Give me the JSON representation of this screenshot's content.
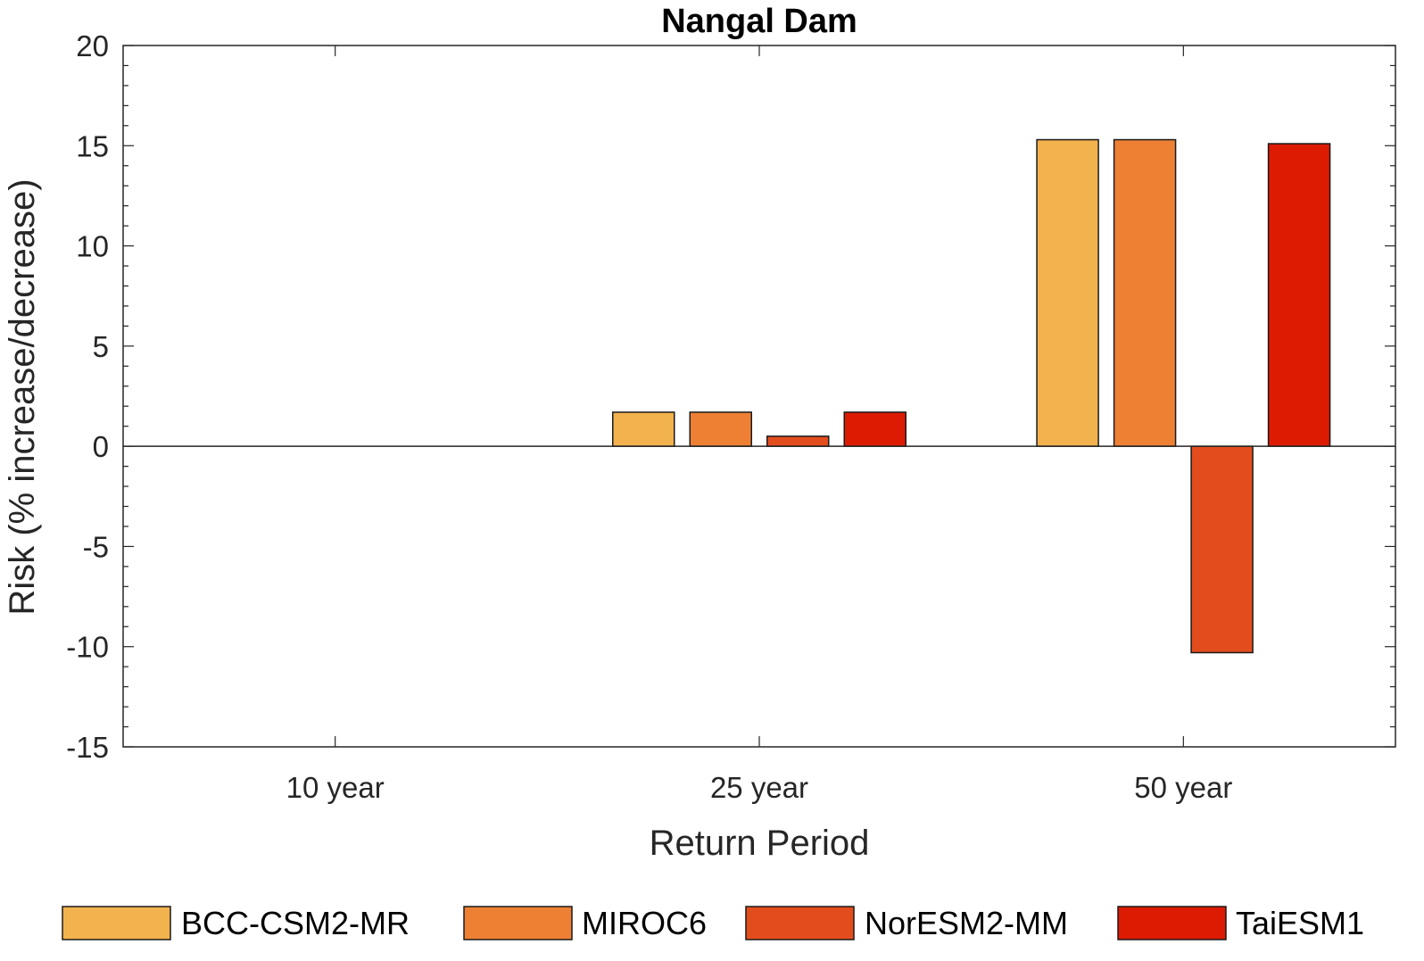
{
  "chart_data": {
    "type": "bar",
    "title": "Nangal Dam",
    "xlabel": "Return Period",
    "ylabel": "Risk (% increase/decrease)",
    "categories": [
      "10 year",
      "25 year",
      "50 year"
    ],
    "ylim": [
      -15,
      20
    ],
    "yticks": [
      -15,
      -10,
      -5,
      0,
      5,
      10,
      15,
      20
    ],
    "ytick_labels": [
      "-15",
      "-10",
      "-5",
      "0",
      "5",
      "10",
      "15",
      "20"
    ],
    "grid": false,
    "legend_position": "bottom",
    "series": [
      {
        "name": "BCC-CSM2-MR",
        "color": "#F2B24E",
        "values": [
          0,
          1.7,
          15.3
        ]
      },
      {
        "name": "MIROC6",
        "color": "#EE8034",
        "values": [
          0,
          1.7,
          15.3
        ]
      },
      {
        "name": "NorESM2-MM",
        "color": "#E34D1E",
        "values": [
          0,
          0.5,
          -10.3
        ]
      },
      {
        "name": "TaiESM1",
        "color": "#DC1B02",
        "values": [
          0,
          1.7,
          15.1
        ]
      }
    ]
  }
}
